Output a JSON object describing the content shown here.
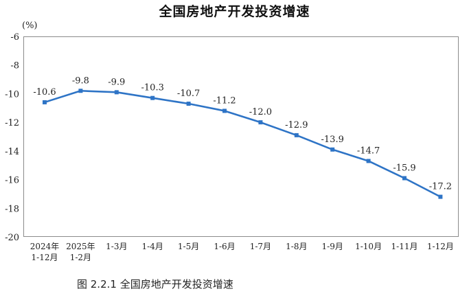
{
  "chart_data": {
    "type": "line",
    "title": "全国房地产开发投资增速",
    "unit_label": "(%)",
    "caption": "图 2.2.1  全国房地产开发投资增速",
    "ylim": [
      -20,
      -6
    ],
    "yticks": [
      -6,
      -8,
      -10,
      -12,
      -14,
      -16,
      -18,
      -20
    ],
    "grid": false,
    "categories": [
      [
        "2024年",
        "1-12月"
      ],
      [
        "2025年",
        "1-2月"
      ],
      [
        "1-3月"
      ],
      [
        "1-4月"
      ],
      [
        "1-5月"
      ],
      [
        "1-6月"
      ],
      [
        "1-7月"
      ],
      [
        "1-8月"
      ],
      [
        "1-9月"
      ],
      [
        "1-10月"
      ],
      [
        "1-11月"
      ],
      [
        "1-12月"
      ]
    ],
    "series": [
      {
        "values": [
          -10.6,
          -9.8,
          -9.9,
          -10.3,
          -10.7,
          -11.2,
          -12.0,
          -12.9,
          -13.9,
          -14.7,
          -15.9,
          -17.2
        ],
        "labels": [
          "-10.6",
          "-9.8",
          "-9.9",
          "-10.3",
          "-10.7",
          "-11.2",
          "-12.0",
          "-12.9",
          "-13.9",
          "-14.7",
          "-15.9",
          "-17.2"
        ],
        "color": "#2e74c6"
      }
    ]
  }
}
